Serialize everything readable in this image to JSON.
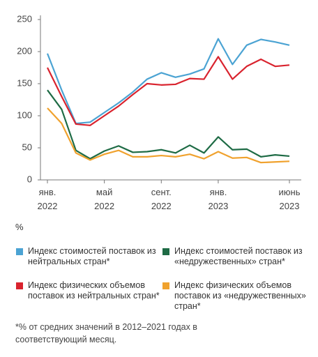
{
  "chart_data": {
    "type": "line",
    "categories": [
      "янв.\n2022",
      null,
      null,
      null,
      "май\n2022",
      null,
      null,
      null,
      "сент.\n2022",
      null,
      null,
      null,
      "янв.\n2023",
      null,
      null,
      null,
      null,
      "июнь\n2023"
    ],
    "series": [
      {
        "name": "Индекс стоимостей поставок из нейтральных стран*",
        "color": "#4ba3d3",
        "values": [
          197,
          140,
          88,
          90,
          105,
          120,
          137,
          157,
          167,
          160,
          165,
          173,
          220,
          180,
          210,
          219,
          215,
          210
        ]
      },
      {
        "name": "Индекс стоимостей поставок из «недружественных» стран*",
        "color": "#1e6b45",
        "values": [
          140,
          110,
          46,
          33,
          45,
          53,
          43,
          44,
          47,
          42,
          54,
          42,
          67,
          47,
          48,
          36,
          39,
          37
        ]
      },
      {
        "name": "Индекс физических объемов поставок из нейтральных стран*",
        "color": "#d9232e",
        "values": [
          175,
          130,
          87,
          85,
          100,
          115,
          133,
          150,
          148,
          149,
          158,
          157,
          192,
          157,
          177,
          188,
          177,
          179
        ]
      },
      {
        "name": "Индекс физических объемов поставок из «недружественных» стран*",
        "color": "#f0a22e",
        "values": [
          112,
          88,
          42,
          31,
          40,
          46,
          36,
          36,
          38,
          36,
          40,
          33,
          44,
          34,
          35,
          27,
          28,
          29
        ]
      }
    ],
    "ylim": [
      0,
      250
    ],
    "yticks": [
      0,
      50,
      100,
      150,
      200,
      250
    ],
    "unit_label": "%",
    "footnote": "*% от средних значений в 2012–2021 годах в соответствующий месяц."
  }
}
